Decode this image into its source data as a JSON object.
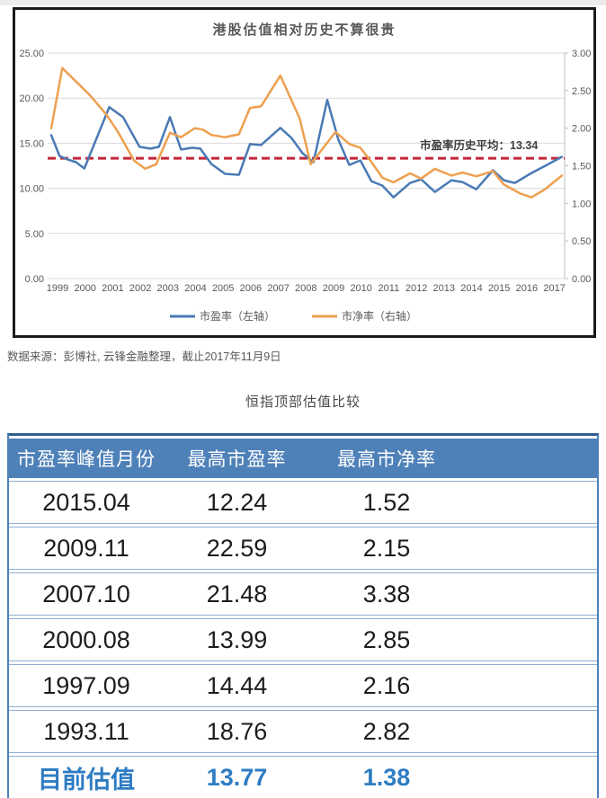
{
  "source_note": "数据来源：彭博社, 云锋金融整理，截止2017年11月9日",
  "colors": {
    "pe_line": "#4a7ab5",
    "pb_line": "#eda04f",
    "average_line": "#c4273a",
    "grid": "#d9d9d9",
    "axis_text": "#595959",
    "annotation_text": "#3f3f3f",
    "table_header_bg": "#4f81b9",
    "table_footer_text": "#2e7cc3"
  },
  "chart_data": {
    "type": "line",
    "title": "港股估值相对历史不算很贵",
    "x_axis": {
      "ticks": [
        "1999",
        "2000",
        "2001",
        "2002",
        "2003",
        "2004",
        "2005",
        "2006",
        "2007",
        "2008",
        "2009",
        "2010",
        "2011",
        "2012",
        "2013",
        "2014",
        "2015",
        "2016",
        "2017"
      ],
      "range": [
        1999,
        2017.6
      ]
    },
    "left_axis": {
      "label": "市盈率",
      "min": 0,
      "max": 25,
      "ticks": [
        "25.00",
        "20.00",
        "15.00",
        "10.00",
        "5.00",
        "0.00"
      ],
      "tick_values": [
        25,
        20,
        15,
        10,
        5,
        0
      ]
    },
    "right_axis": {
      "label": "市净率",
      "min": 0,
      "max": 3,
      "ticks": [
        "3.00",
        "2.50",
        "2.00",
        "1.50",
        "1.00",
        "0.50",
        "0.00"
      ],
      "tick_values": [
        3,
        2.5,
        2,
        1.5,
        1,
        0.5,
        0
      ]
    },
    "average_line": {
      "value": 13.34,
      "label": "市盈率历史平均：13.34",
      "color": "#c4273a"
    },
    "grid": true,
    "legend_position": "bottom",
    "series": [
      {
        "name": "市盈率（左轴）",
        "axis": "left",
        "color": "#4a7ab5",
        "points": [
          [
            1999.0,
            15.9
          ],
          [
            1999.3,
            13.6
          ],
          [
            1999.6,
            13.2
          ],
          [
            1999.9,
            12.9
          ],
          [
            2000.2,
            12.2
          ],
          [
            2001.1,
            19.0
          ],
          [
            2001.6,
            17.9
          ],
          [
            2002.2,
            14.6
          ],
          [
            2002.6,
            14.4
          ],
          [
            2002.9,
            14.6
          ],
          [
            2003.3,
            17.9
          ],
          [
            2003.7,
            14.3
          ],
          [
            2004.1,
            14.5
          ],
          [
            2004.4,
            14.4
          ],
          [
            2004.8,
            12.7
          ],
          [
            2005.3,
            11.6
          ],
          [
            2005.8,
            11.5
          ],
          [
            2006.2,
            14.9
          ],
          [
            2006.6,
            14.8
          ],
          [
            2007.3,
            16.7
          ],
          [
            2007.7,
            15.6
          ],
          [
            2008.1,
            13.9
          ],
          [
            2008.5,
            12.9
          ],
          [
            2009.0,
            19.8
          ],
          [
            2009.4,
            15.4
          ],
          [
            2009.8,
            12.6
          ],
          [
            2010.2,
            13.1
          ],
          [
            2010.6,
            10.8
          ],
          [
            2011.0,
            10.3
          ],
          [
            2011.4,
            9.0
          ],
          [
            2012.0,
            10.6
          ],
          [
            2012.4,
            11.0
          ],
          [
            2012.9,
            9.6
          ],
          [
            2013.5,
            10.9
          ],
          [
            2013.9,
            10.7
          ],
          [
            2014.4,
            9.9
          ],
          [
            2015.0,
            12.0
          ],
          [
            2015.4,
            10.9
          ],
          [
            2015.8,
            10.6
          ],
          [
            2016.4,
            11.7
          ],
          [
            2016.9,
            12.5
          ],
          [
            2017.5,
            13.5
          ]
        ]
      },
      {
        "name": "市净率（右轴）",
        "axis": "right",
        "color": "#eda04f",
        "points": [
          [
            1999.0,
            2.0
          ],
          [
            1999.4,
            2.8
          ],
          [
            1999.9,
            2.62
          ],
          [
            2000.4,
            2.44
          ],
          [
            2001.0,
            2.18
          ],
          [
            2001.4,
            1.96
          ],
          [
            2002.0,
            1.57
          ],
          [
            2002.4,
            1.46
          ],
          [
            2002.8,
            1.52
          ],
          [
            2003.3,
            1.94
          ],
          [
            2003.7,
            1.88
          ],
          [
            2004.2,
            2.0
          ],
          [
            2004.5,
            1.98
          ],
          [
            2004.8,
            1.91
          ],
          [
            2005.3,
            1.88
          ],
          [
            2005.8,
            1.92
          ],
          [
            2006.2,
            2.27
          ],
          [
            2006.6,
            2.29
          ],
          [
            2007.3,
            2.7
          ],
          [
            2008.0,
            2.13
          ],
          [
            2008.4,
            1.52
          ],
          [
            2009.3,
            1.95
          ],
          [
            2009.8,
            1.79
          ],
          [
            2010.2,
            1.74
          ],
          [
            2010.6,
            1.55
          ],
          [
            2011.0,
            1.34
          ],
          [
            2011.4,
            1.28
          ],
          [
            2012.0,
            1.4
          ],
          [
            2012.4,
            1.33
          ],
          [
            2012.9,
            1.46
          ],
          [
            2013.5,
            1.37
          ],
          [
            2013.9,
            1.41
          ],
          [
            2014.4,
            1.36
          ],
          [
            2015.0,
            1.43
          ],
          [
            2015.4,
            1.25
          ],
          [
            2016.0,
            1.13
          ],
          [
            2016.4,
            1.08
          ],
          [
            2016.9,
            1.19
          ],
          [
            2017.5,
            1.37
          ]
        ]
      }
    ]
  },
  "table": {
    "title": "恒指顶部估值比较",
    "headers": [
      "市盈率峰值月份",
      "最高市盈率",
      "最高市净率"
    ],
    "rows": [
      [
        "2015.04",
        "12.24",
        "1.52"
      ],
      [
        "2009.11",
        "22.59",
        "2.15"
      ],
      [
        "2007.10",
        "21.48",
        "3.38"
      ],
      [
        "2000.08",
        "13.99",
        "2.85"
      ],
      [
        "1997.09",
        "14.44",
        "2.16"
      ],
      [
        "1993.11",
        "18.76",
        "2.82"
      ]
    ],
    "footer_row": [
      "目前估值",
      "13.77",
      "1.38"
    ]
  }
}
